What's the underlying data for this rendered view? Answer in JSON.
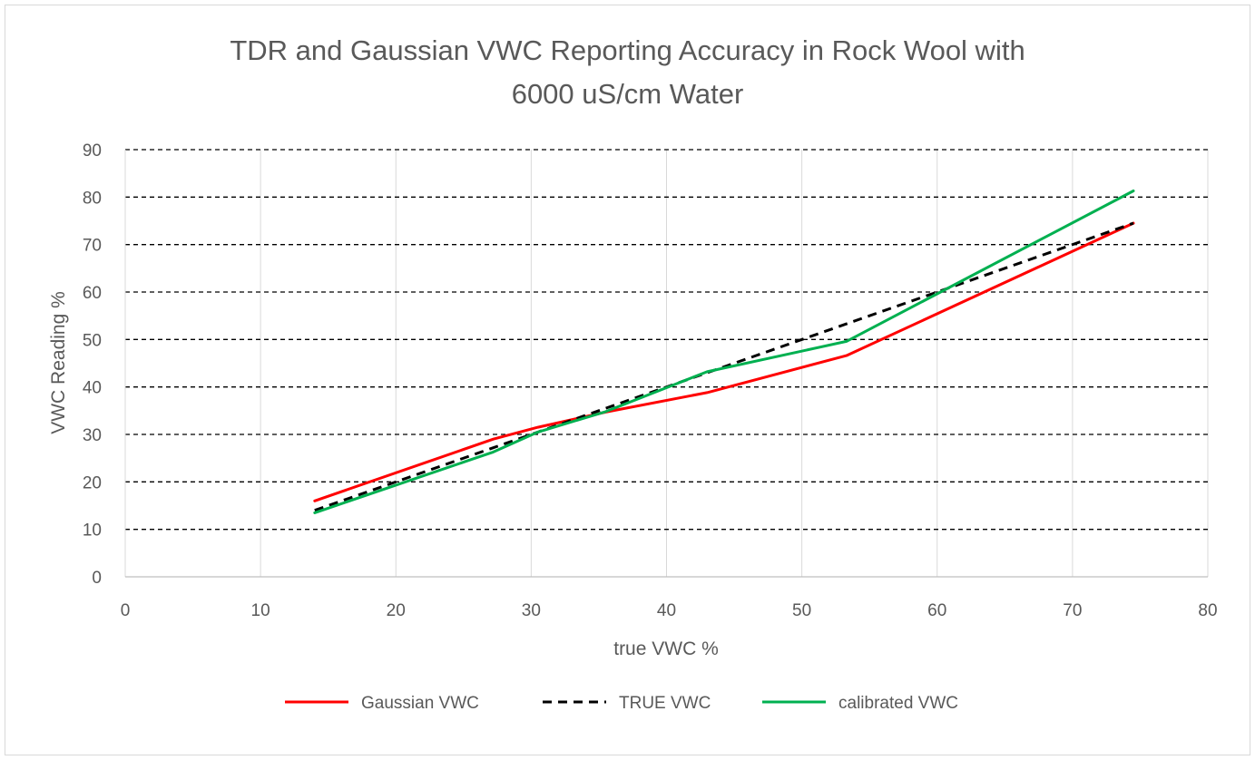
{
  "chart_data": {
    "type": "line",
    "title_lines": [
      "TDR and Gaussian VWC Reporting Accuracy in Rock Wool with",
      "6000 uS/cm Water"
    ],
    "xlabel": "true VWC %",
    "ylabel": "VWC Reading %",
    "xlim": [
      0,
      80
    ],
    "ylim": [
      0,
      90
    ],
    "xticks": [
      0,
      10,
      20,
      30,
      40,
      50,
      60,
      70,
      80
    ],
    "yticks": [
      0,
      10,
      20,
      30,
      40,
      50,
      60,
      70,
      80,
      90
    ],
    "grid": true,
    "legend_position": "bottom",
    "series": [
      {
        "name": "Gaussian VWC",
        "color": "#ff0000",
        "dash": "solid",
        "x": [
          14,
          27.2,
          30.5,
          35.5,
          43,
          53.3,
          74.5
        ],
        "y": [
          16,
          29,
          31.5,
          34.7,
          38.8,
          46.6,
          74.5
        ]
      },
      {
        "name": "TRUE VWC",
        "color": "#000000",
        "dash": "dashed",
        "x": [
          14,
          27.2,
          30.5,
          35.5,
          43,
          53.3,
          74.5
        ],
        "y": [
          14,
          27.2,
          30.5,
          35.5,
          43,
          53.3,
          74.5
        ]
      },
      {
        "name": "calibrated VWC",
        "color": "#00b050",
        "dash": "solid",
        "x": [
          14,
          27.2,
          30.5,
          35.5,
          43,
          53.3,
          74.5
        ],
        "y": [
          13.5,
          26.3,
          30.5,
          34.8,
          43.2,
          49.6,
          81.3
        ]
      }
    ]
  }
}
